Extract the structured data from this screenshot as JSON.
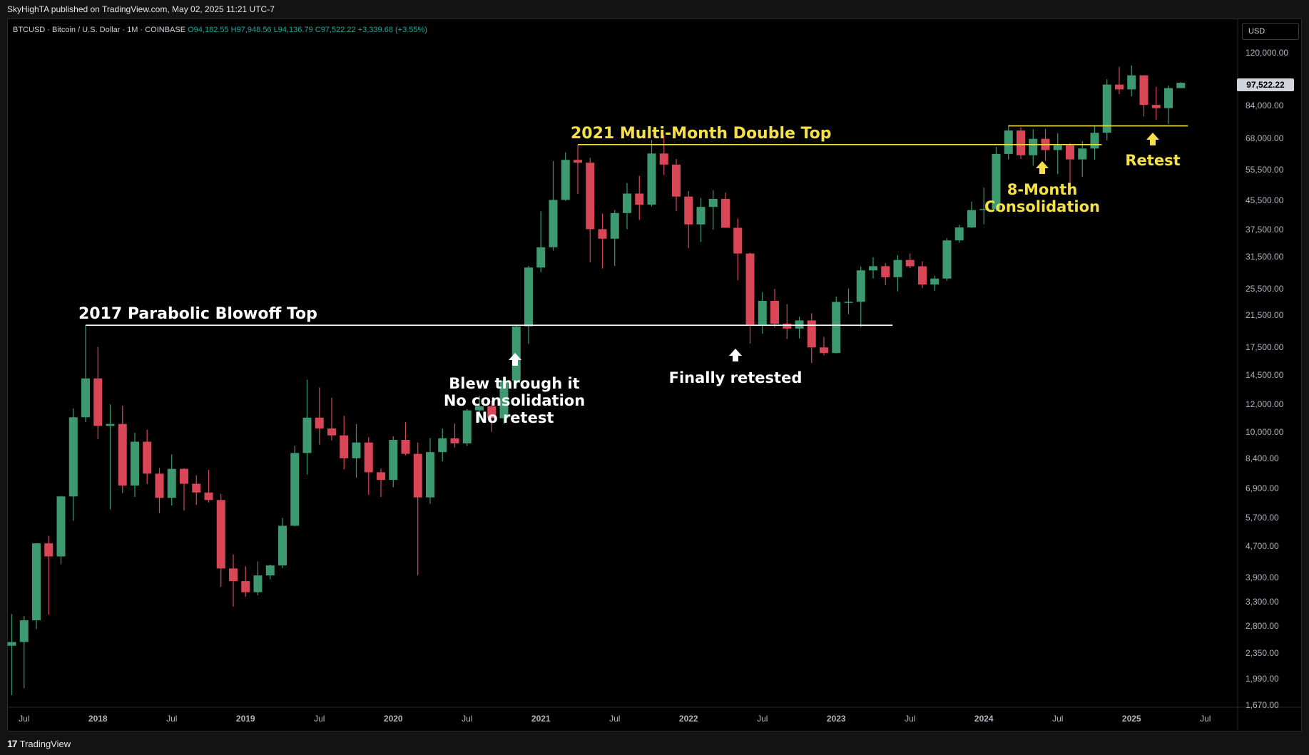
{
  "header": {
    "published_by": "SkyHighTA published on TradingView.com, May 02, 2025 11:21 UTC-7"
  },
  "legend": {
    "symbol": "BTCUSD · Bitcoin / U.S. Dollar · 1M · COINBASE",
    "open": "O94,182.55",
    "high": "H97,948.56",
    "low": "L94,136.79",
    "close": "C97,522.22",
    "change": "+3,339.68 (+3.55%)"
  },
  "price_axis": {
    "currency": "USD",
    "last_price": "97,522.22"
  },
  "footer": {
    "brand": "TradingView"
  },
  "colors": {
    "up": "#3d9970",
    "down": "#d94656",
    "white_level": "#ffffff",
    "yellow_level": "#f5e046",
    "white_text": "#ffffff",
    "yellow_text": "#f5e046"
  },
  "chart_data": {
    "type": "candlestick",
    "scale": "log",
    "timeframe": "1M",
    "y_ticks": [
      "120,000.00",
      "84,000.00",
      "68,000.00",
      "55,500.00",
      "45,500.00",
      "37,500.00",
      "31,500.00",
      "25,500.00",
      "21,500.00",
      "17,500.00",
      "14,500.00",
      "12,000.00",
      "10,000.00",
      "8,400.00",
      "6,900.00",
      "5,700.00",
      "4,700.00",
      "3,900.00",
      "3,300.00",
      "2,800.00",
      "2,350.00",
      "1,990.00",
      "1,670.00"
    ],
    "x_ticks": [
      "Jul",
      "2018",
      "Jul",
      "2019",
      "Jul",
      "2020",
      "Jul",
      "2021",
      "Jul",
      "2022",
      "Jul",
      "2023",
      "Jul",
      "2024",
      "Jul",
      "2025",
      "Jul"
    ],
    "candles": [
      {
        "t": "2017-06",
        "o": 2420,
        "h": 2980,
        "l": 1750,
        "c": 2480
      },
      {
        "t": "2017-07",
        "o": 2480,
        "h": 2940,
        "l": 1830,
        "c": 2860
      },
      {
        "t": "2017-08",
        "o": 2860,
        "h": 4750,
        "l": 2700,
        "c": 4740
      },
      {
        "t": "2017-09",
        "o": 4740,
        "h": 4980,
        "l": 2970,
        "c": 4350
      },
      {
        "t": "2017-10",
        "o": 4350,
        "h": 6470,
        "l": 4130,
        "c": 6450
      },
      {
        "t": "2017-11",
        "o": 6450,
        "h": 11500,
        "l": 5500,
        "c": 10850
      },
      {
        "t": "2017-12",
        "o": 10850,
        "h": 19890,
        "l": 10500,
        "c": 14000
      },
      {
        "t": "2018-01",
        "o": 14000,
        "h": 17200,
        "l": 9400,
        "c": 10250
      },
      {
        "t": "2018-02",
        "o": 10250,
        "h": 11800,
        "l": 5920,
        "c": 10380
      },
      {
        "t": "2018-03",
        "o": 10380,
        "h": 11700,
        "l": 6600,
        "c": 6930
      },
      {
        "t": "2018-04",
        "o": 6930,
        "h": 9800,
        "l": 6430,
        "c": 9240
      },
      {
        "t": "2018-05",
        "o": 9240,
        "h": 10000,
        "l": 7000,
        "c": 7490
      },
      {
        "t": "2018-06",
        "o": 7490,
        "h": 7780,
        "l": 5780,
        "c": 6390
      },
      {
        "t": "2018-07",
        "o": 6390,
        "h": 8500,
        "l": 6080,
        "c": 7730
      },
      {
        "t": "2018-08",
        "o": 7730,
        "h": 7760,
        "l": 5880,
        "c": 7010
      },
      {
        "t": "2018-09",
        "o": 7010,
        "h": 7410,
        "l": 6100,
        "c": 6620
      },
      {
        "t": "2018-10",
        "o": 6620,
        "h": 7680,
        "l": 6200,
        "c": 6300
      },
      {
        "t": "2018-11",
        "o": 6300,
        "h": 6560,
        "l": 3560,
        "c": 4020
      },
      {
        "t": "2018-12",
        "o": 4020,
        "h": 4410,
        "l": 3130,
        "c": 3700
      },
      {
        "t": "2019-01",
        "o": 3700,
        "h": 4080,
        "l": 3340,
        "c": 3440
      },
      {
        "t": "2019-02",
        "o": 3440,
        "h": 4210,
        "l": 3370,
        "c": 3840
      },
      {
        "t": "2019-03",
        "o": 3840,
        "h": 4120,
        "l": 3740,
        "c": 4100
      },
      {
        "t": "2019-04",
        "o": 4100,
        "h": 5600,
        "l": 4030,
        "c": 5320
      },
      {
        "t": "2019-05",
        "o": 5320,
        "h": 9000,
        "l": 5300,
        "c": 8580
      },
      {
        "t": "2019-06",
        "o": 8580,
        "h": 13880,
        "l": 7450,
        "c": 10820
      },
      {
        "t": "2019-07",
        "o": 10820,
        "h": 13200,
        "l": 9070,
        "c": 10080
      },
      {
        "t": "2019-08",
        "o": 10080,
        "h": 12330,
        "l": 9320,
        "c": 9630
      },
      {
        "t": "2019-09",
        "o": 9630,
        "h": 10950,
        "l": 7710,
        "c": 8290
      },
      {
        "t": "2019-10",
        "o": 8290,
        "h": 10370,
        "l": 7300,
        "c": 9190
      },
      {
        "t": "2019-11",
        "o": 9190,
        "h": 9520,
        "l": 6520,
        "c": 7560
      },
      {
        "t": "2019-12",
        "o": 7560,
        "h": 7750,
        "l": 6430,
        "c": 7190
      },
      {
        "t": "2020-01",
        "o": 7190,
        "h": 9570,
        "l": 6850,
        "c": 9350
      },
      {
        "t": "2020-02",
        "o": 9350,
        "h": 10500,
        "l": 8450,
        "c": 8530
      },
      {
        "t": "2020-03",
        "o": 8530,
        "h": 9180,
        "l": 3850,
        "c": 6410
      },
      {
        "t": "2020-04",
        "o": 6410,
        "h": 9460,
        "l": 6150,
        "c": 8630
      },
      {
        "t": "2020-05",
        "o": 8630,
        "h": 10070,
        "l": 8120,
        "c": 9450
      },
      {
        "t": "2020-06",
        "o": 9450,
        "h": 10400,
        "l": 8900,
        "c": 9140
      },
      {
        "t": "2020-07",
        "o": 9140,
        "h": 11450,
        "l": 8990,
        "c": 11350
      },
      {
        "t": "2020-08",
        "o": 11350,
        "h": 12480,
        "l": 10520,
        "c": 11660
      },
      {
        "t": "2020-09",
        "o": 11660,
        "h": 12090,
        "l": 9850,
        "c": 10780
      },
      {
        "t": "2020-10",
        "o": 10780,
        "h": 14100,
        "l": 10380,
        "c": 13800
      },
      {
        "t": "2020-11",
        "o": 13800,
        "h": 19860,
        "l": 13200,
        "c": 19700
      },
      {
        "t": "2020-12",
        "o": 19700,
        "h": 29300,
        "l": 17570,
        "c": 28990
      },
      {
        "t": "2021-01",
        "o": 28990,
        "h": 41950,
        "l": 28130,
        "c": 33110
      },
      {
        "t": "2021-02",
        "o": 33110,
        "h": 58350,
        "l": 32400,
        "c": 45200
      },
      {
        "t": "2021-03",
        "o": 45200,
        "h": 61780,
        "l": 44900,
        "c": 58800
      },
      {
        "t": "2021-04",
        "o": 58800,
        "h": 64900,
        "l": 47000,
        "c": 57700
      },
      {
        "t": "2021-05",
        "o": 57700,
        "h": 59600,
        "l": 30000,
        "c": 37300
      },
      {
        "t": "2021-06",
        "o": 37300,
        "h": 41300,
        "l": 28800,
        "c": 35040
      },
      {
        "t": "2021-07",
        "o": 35040,
        "h": 42300,
        "l": 29300,
        "c": 41460
      },
      {
        "t": "2021-08",
        "o": 41460,
        "h": 50500,
        "l": 37300,
        "c": 47130
      },
      {
        "t": "2021-09",
        "o": 47130,
        "h": 52900,
        "l": 39600,
        "c": 43820
      },
      {
        "t": "2021-10",
        "o": 43820,
        "h": 67000,
        "l": 43300,
        "c": 61300
      },
      {
        "t": "2021-11",
        "o": 61300,
        "h": 69000,
        "l": 53200,
        "c": 57000
      },
      {
        "t": "2021-12",
        "o": 57000,
        "h": 59100,
        "l": 42000,
        "c": 46200
      },
      {
        "t": "2022-01",
        "o": 46200,
        "h": 47950,
        "l": 32900,
        "c": 38480
      },
      {
        "t": "2022-02",
        "o": 38480,
        "h": 45800,
        "l": 34300,
        "c": 43160
      },
      {
        "t": "2022-03",
        "o": 43160,
        "h": 48200,
        "l": 37200,
        "c": 45510
      },
      {
        "t": "2022-04",
        "o": 45510,
        "h": 47450,
        "l": 37700,
        "c": 37640
      },
      {
        "t": "2022-05",
        "o": 37640,
        "h": 40000,
        "l": 26700,
        "c": 31790
      },
      {
        "t": "2022-06",
        "o": 31790,
        "h": 31980,
        "l": 17600,
        "c": 19940
      },
      {
        "t": "2022-07",
        "o": 19940,
        "h": 24670,
        "l": 18780,
        "c": 23300
      },
      {
        "t": "2022-08",
        "o": 23300,
        "h": 25210,
        "l": 19550,
        "c": 20050
      },
      {
        "t": "2022-09",
        "o": 20050,
        "h": 22800,
        "l": 18150,
        "c": 19420
      },
      {
        "t": "2022-10",
        "o": 19420,
        "h": 20990,
        "l": 18190,
        "c": 20490
      },
      {
        "t": "2022-11",
        "o": 20490,
        "h": 21480,
        "l": 15480,
        "c": 17160
      },
      {
        "t": "2022-12",
        "o": 17160,
        "h": 18390,
        "l": 16300,
        "c": 16540
      },
      {
        "t": "2023-01",
        "o": 16540,
        "h": 23950,
        "l": 16500,
        "c": 23130
      },
      {
        "t": "2023-02",
        "o": 23130,
        "h": 25250,
        "l": 21350,
        "c": 23150
      },
      {
        "t": "2023-03",
        "o": 23150,
        "h": 29190,
        "l": 19570,
        "c": 28460
      },
      {
        "t": "2023-04",
        "o": 28460,
        "h": 31000,
        "l": 27000,
        "c": 29250
      },
      {
        "t": "2023-05",
        "o": 29250,
        "h": 29840,
        "l": 25800,
        "c": 27210
      },
      {
        "t": "2023-06",
        "o": 27210,
        "h": 31430,
        "l": 24800,
        "c": 30470
      },
      {
        "t": "2023-07",
        "o": 30470,
        "h": 31800,
        "l": 28860,
        "c": 29230
      },
      {
        "t": "2023-08",
        "o": 29230,
        "h": 30180,
        "l": 25300,
        "c": 25930
      },
      {
        "t": "2023-09",
        "o": 25930,
        "h": 27480,
        "l": 24900,
        "c": 26970
      },
      {
        "t": "2023-10",
        "o": 26970,
        "h": 35200,
        "l": 26540,
        "c": 34650
      },
      {
        "t": "2023-11",
        "o": 34650,
        "h": 38400,
        "l": 34100,
        "c": 37720
      },
      {
        "t": "2023-12",
        "o": 37720,
        "h": 44700,
        "l": 37600,
        "c": 42280
      },
      {
        "t": "2024-01",
        "o": 42280,
        "h": 48970,
        "l": 38500,
        "c": 42580
      },
      {
        "t": "2024-02",
        "o": 42580,
        "h": 64000,
        "l": 41880,
        "c": 61130
      },
      {
        "t": "2024-03",
        "o": 61130,
        "h": 73830,
        "l": 59000,
        "c": 71300
      },
      {
        "t": "2024-04",
        "o": 71300,
        "h": 72800,
        "l": 59100,
        "c": 60600
      },
      {
        "t": "2024-05",
        "o": 60600,
        "h": 71900,
        "l": 56500,
        "c": 67500
      },
      {
        "t": "2024-06",
        "o": 67500,
        "h": 71990,
        "l": 58400,
        "c": 62700
      },
      {
        "t": "2024-07",
        "o": 62700,
        "h": 70000,
        "l": 53500,
        "c": 64630
      },
      {
        "t": "2024-08",
        "o": 64630,
        "h": 65650,
        "l": 49050,
        "c": 58970
      },
      {
        "t": "2024-09",
        "o": 58970,
        "h": 66500,
        "l": 52550,
        "c": 63330
      },
      {
        "t": "2024-10",
        "o": 63330,
        "h": 73600,
        "l": 58900,
        "c": 70220
      },
      {
        "t": "2024-11",
        "o": 70220,
        "h": 99800,
        "l": 66800,
        "c": 96400
      },
      {
        "t": "2024-12",
        "o": 96400,
        "h": 108350,
        "l": 90500,
        "c": 93400
      },
      {
        "t": "2025-01",
        "o": 93400,
        "h": 109300,
        "l": 89200,
        "c": 102430
      },
      {
        "t": "2025-02",
        "o": 102430,
        "h": 102500,
        "l": 78200,
        "c": 84350
      },
      {
        "t": "2025-03",
        "o": 84350,
        "h": 95000,
        "l": 76500,
        "c": 82550
      },
      {
        "t": "2025-04",
        "o": 82550,
        "h": 95800,
        "l": 74400,
        "c": 94180
      },
      {
        "t": "2025-05",
        "o": 94180,
        "h": 97950,
        "l": 94140,
        "c": 97520
      }
    ],
    "levels": [
      {
        "price": 19850,
        "from": "2017-12",
        "to": "2023-05",
        "color": "white"
      },
      {
        "price": 65000,
        "from": "2021-04",
        "to": "2024-10",
        "color": "yellow"
      },
      {
        "price": 73500,
        "from": "2024-03",
        "to": "2025-05",
        "color": "yellow"
      }
    ],
    "annotations": [
      {
        "lines": [
          "2017 Parabolic Blowoff Top"
        ],
        "color": "white"
      },
      {
        "lines": [
          "2021 Multi-Month Double Top"
        ],
        "color": "yellow"
      },
      {
        "lines": [
          "Blew through it",
          "No consolidation",
          "No retest"
        ],
        "color": "white"
      },
      {
        "lines": [
          "Finally retested"
        ],
        "color": "white"
      },
      {
        "lines": [
          "8-Month",
          "Consolidation"
        ],
        "color": "yellow"
      },
      {
        "lines": [
          "Retest"
        ],
        "color": "yellow"
      }
    ]
  }
}
